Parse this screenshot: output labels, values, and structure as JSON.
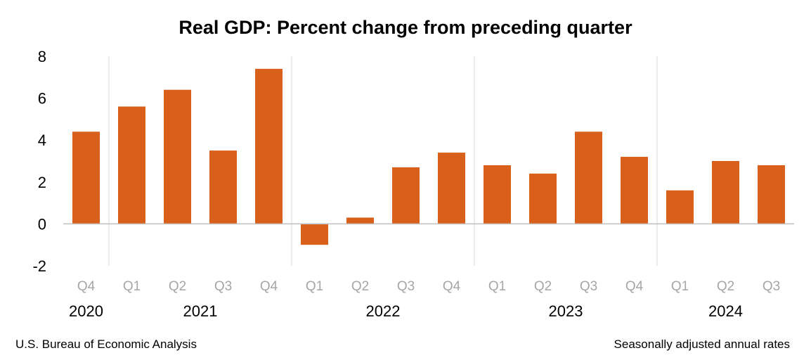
{
  "chart_data": {
    "type": "bar",
    "title": "Real GDP:  Percent change from preceding quarter",
    "categories": [
      "Q4",
      "Q1",
      "Q2",
      "Q3",
      "Q4",
      "Q1",
      "Q2",
      "Q3",
      "Q4",
      "Q1",
      "Q2",
      "Q3",
      "Q4",
      "Q1",
      "Q2",
      "Q3"
    ],
    "years": [
      {
        "label": "2020",
        "count": 1
      },
      {
        "label": "2021",
        "count": 4
      },
      {
        "label": "2022",
        "count": 4
      },
      {
        "label": "2023",
        "count": 4
      },
      {
        "label": "2024",
        "count": 3
      }
    ],
    "values": [
      4.4,
      5.6,
      6.4,
      3.5,
      7.4,
      -1.0,
      0.3,
      2.7,
      3.4,
      2.8,
      2.4,
      4.4,
      3.2,
      1.6,
      3.0,
      2.8
    ],
    "yticks": [
      -2,
      0,
      2,
      4,
      6,
      8
    ],
    "ylim": [
      -2,
      8
    ],
    "xlabel": "",
    "ylabel": "",
    "bar_color": "#d9601b"
  },
  "footer": {
    "source": "U.S. Bureau of Economic Analysis",
    "note": "Seasonally adjusted annual rates"
  }
}
